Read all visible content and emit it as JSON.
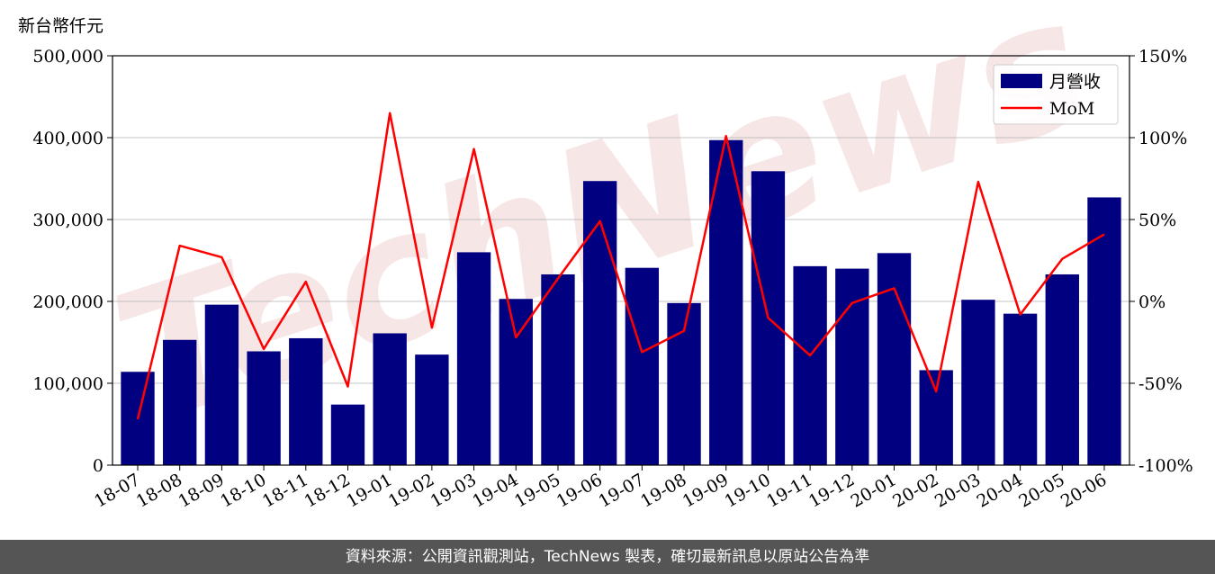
{
  "chart_data": {
    "type": "bar+line",
    "y_unit_label": "新台幣仟元",
    "categories": [
      "18-07",
      "18-08",
      "18-09",
      "18-10",
      "18-11",
      "18-12",
      "19-01",
      "19-02",
      "19-03",
      "19-04",
      "19-05",
      "19-06",
      "19-07",
      "19-08",
      "19-09",
      "19-10",
      "19-11",
      "19-12",
      "20-01",
      "20-02",
      "20-03",
      "20-04",
      "20-05",
      "20-06"
    ],
    "series": [
      {
        "name": "月營收",
        "type": "bar",
        "axis": "left",
        "color": "#000080",
        "values": [
          114000,
          153000,
          196000,
          139000,
          155000,
          74000,
          161000,
          135000,
          260000,
          203000,
          233000,
          347000,
          241000,
          198000,
          397000,
          359000,
          243000,
          240000,
          259000,
          116000,
          202000,
          185000,
          233000,
          327000
        ]
      },
      {
        "name": "MoM",
        "type": "line",
        "axis": "right",
        "color": "#ff0000",
        "values": [
          -72,
          34,
          27,
          -29,
          12,
          -52,
          115,
          -16,
          93,
          -22,
          14,
          49,
          -31,
          -18,
          101,
          -10,
          -33,
          -1,
          8,
          -55,
          73,
          -8,
          26,
          41
        ]
      }
    ],
    "y_left": {
      "min": 0,
      "max": 500000,
      "ticks": [
        0,
        100000,
        200000,
        300000,
        400000,
        500000
      ],
      "tick_labels": [
        "0",
        "100,000",
        "200,000",
        "300,000",
        "400,000",
        "500,000"
      ]
    },
    "y_right": {
      "min": -100,
      "max": 150,
      "ticks": [
        -100,
        -50,
        0,
        50,
        100,
        150
      ],
      "tick_labels": [
        "-100%",
        "-50%",
        "0%",
        "50%",
        "100%",
        "150%"
      ]
    },
    "grid": true,
    "legend": "top-right"
  },
  "watermark": "TechNews",
  "footer": "資料來源：公開資訊觀測站，TechNews 製表，確切最新訊息以原站公告為準"
}
